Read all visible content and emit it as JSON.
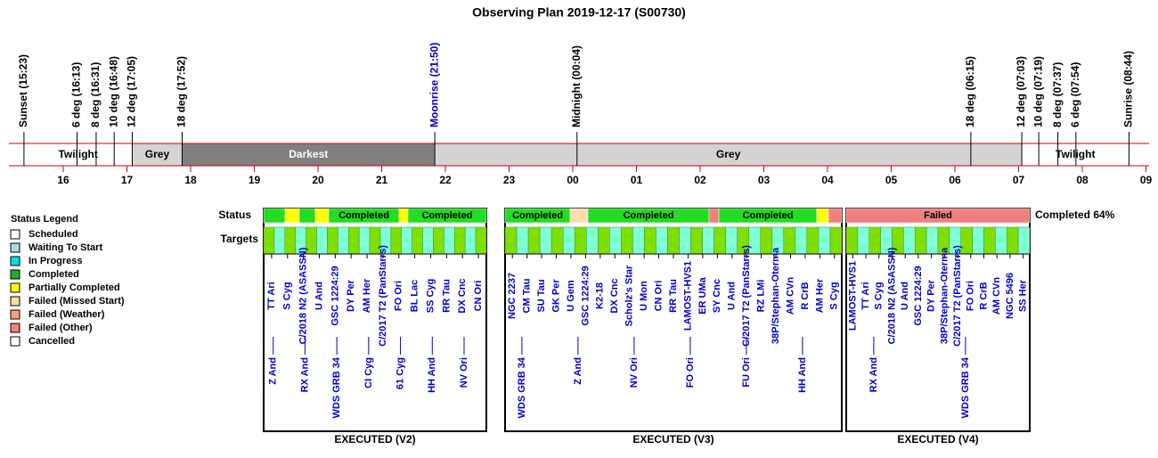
{
  "title": "Observing Plan 2019-12-17 (S00730)",
  "events": [
    {
      "label": "Sunset (15:23)",
      "color": "#000000"
    },
    {
      "label": "6 deg (16:13)",
      "color": "#000000"
    },
    {
      "label": "8 deg (16:31)",
      "color": "#000000"
    },
    {
      "label": "10 deg (16:48)",
      "color": "#000000"
    },
    {
      "label": "12 deg (17:05)",
      "color": "#000000"
    },
    {
      "label": "18 deg (17:52)",
      "color": "#000000"
    },
    {
      "label": "Moonrise (21:50)",
      "color": "#0000cc"
    },
    {
      "label": "Midnight (00:04)",
      "color": "#000000"
    },
    {
      "label": "18 deg (06:15)",
      "color": "#000000"
    },
    {
      "label": "12 deg (07:03)",
      "color": "#000000"
    },
    {
      "label": "10 deg (07:19)",
      "color": "#000000"
    },
    {
      "label": "8 deg (07:37)",
      "color": "#000000"
    },
    {
      "label": "6 deg (07:54)",
      "color": "#000000"
    },
    {
      "label": "Sunrise (08:44)",
      "color": "#000000"
    }
  ],
  "bands": [
    {
      "label": "Twilight",
      "color": "#ffffff",
      "text_color": "#000000"
    },
    {
      "label": "Grey",
      "color": "#d3d3d3",
      "text_color": "#000000"
    },
    {
      "label": "Darkest",
      "color": "#808080",
      "text_color": "#ffffff"
    },
    {
      "label": "Grey",
      "color": "#d3d3d3",
      "text_color": "#000000"
    },
    {
      "label": "Twilight",
      "color": "#ffffff",
      "text_color": "#000000"
    }
  ],
  "hours": [
    "16",
    "17",
    "18",
    "19",
    "20",
    "21",
    "22",
    "23",
    "00",
    "01",
    "02",
    "03",
    "04",
    "05",
    "06",
    "07",
    "08",
    "09"
  ],
  "legend": {
    "title": "Status Legend",
    "items": [
      {
        "label": "Scheduled",
        "color": "#ffffff"
      },
      {
        "label": "Waiting To Start",
        "color": "#add8e6"
      },
      {
        "label": "In Progress",
        "color": "#00e0e0"
      },
      {
        "label": "Completed",
        "color": "#22b022"
      },
      {
        "label": "Partially Completed",
        "color": "#ffff00"
      },
      {
        "label": "Failed (Missed Start)",
        "color": "#ffdead"
      },
      {
        "label": "Failed (Weather)",
        "color": "#ffa07a"
      },
      {
        "label": "Failed (Other)",
        "color": "#f08080"
      },
      {
        "label": "Cancelled",
        "color": "#ffffff"
      }
    ]
  },
  "status_label": "Status",
  "targets_label": "Targets",
  "summary": "Completed 64%",
  "panels": [
    {
      "footer": "EXECUTED (V2)",
      "segments": [
        {
          "color": "#22dd22"
        },
        {
          "color": "#ffff00"
        },
        {
          "color": "#22dd22"
        },
        {
          "color": "#ffff00"
        },
        {
          "color": "#22dd22",
          "label": "Completed"
        },
        {
          "color": "#ffff00"
        },
        {
          "color": "#22dd22",
          "label": "Completed"
        }
      ],
      "targets_top": [
        "TT Ari",
        "S Cyg",
        "C/2018 N2 (ASASSN)",
        "U And",
        "GSC 1224:29",
        "DY Per",
        "AM Her",
        "C/2017 T2 (PanStarrs)",
        "FO Ori",
        "BL Lac",
        "SS Cyg",
        "RR Tau",
        "DX Cnc",
        "CN Ori"
      ],
      "targets_bottom": [
        "Z And",
        "RX And",
        "WDS GRB 34",
        "CI Cyg",
        "61 Cyg",
        "HH And",
        "NV Ori"
      ]
    },
    {
      "footer": "EXECUTED (V3)",
      "segments": [
        {
          "color": "#22dd22",
          "label": "Completed"
        },
        {
          "color": "#ffdead"
        },
        {
          "color": "#22dd22",
          "label": "Completed"
        },
        {
          "color": "#f08080"
        },
        {
          "color": "#22dd22",
          "label": "Completed"
        },
        {
          "color": "#ffff00"
        },
        {
          "color": "#f08080"
        }
      ],
      "targets_top": [
        "NGC 2237",
        "CM Tau",
        "SU Tau",
        "GK Per",
        "U Gem",
        "GSC 1224:29",
        "K2-18",
        "DX Cnc",
        "Scholz's Star",
        "U Mon",
        "CN Ori",
        "RR Tau",
        "LAMOST-HVS1",
        "ER UMa",
        "SY Cnc",
        "U And",
        "C/2017 T2 (PanStarrs)",
        "RZ LMi",
        "38P/Stephan-Oterma",
        "AM CVn",
        "R CrB",
        "AM Her",
        "S Cyg"
      ],
      "targets_bottom": [
        "WDS GRB 34",
        "Z And",
        "NV Ori",
        "FO Ori",
        "FU Ori",
        "HH And"
      ]
    },
    {
      "footer": "EXECUTED (V4)",
      "segments": [
        {
          "color": "#f08080",
          "label": "Failed"
        }
      ],
      "targets_top": [
        "LAMOST-HVS1",
        "TT Ari",
        "S Cyg",
        "C/2018 N2 (ASASSN)",
        "U And",
        "GSC 1224:29",
        "DY Per",
        "38P/Stephan-Oterma",
        "C/2017 T2 (PanStarrs)",
        "FO Ori",
        "R CrB",
        "AM CVn",
        "NGC 5496",
        "SS Her"
      ],
      "targets_bottom": [
        "RX And",
        "WDS GRB 34"
      ]
    }
  ]
}
